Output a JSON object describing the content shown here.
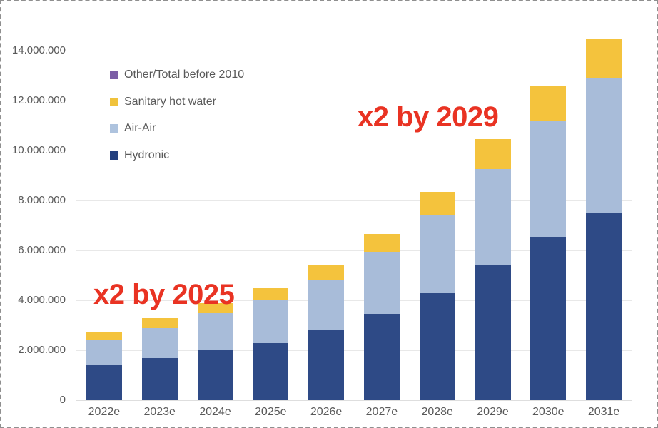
{
  "figure": {
    "background": "#ffffff",
    "border_color": "#8f8f8f",
    "text_color": "#595959",
    "gridline_color": "#e8e8e8"
  },
  "chart_data": {
    "type": "bar",
    "stacked": true,
    "title": "",
    "xlabel": "",
    "ylabel": "",
    "grid": true,
    "legend_position": "top-left-inside",
    "categories": [
      "2022e",
      "2023e",
      "2024e",
      "2025e",
      "2026e",
      "2027e",
      "2028e",
      "2029e",
      "2030e",
      "2031e"
    ],
    "series": [
      {
        "name": "Hydronic",
        "color": "#2e4a86",
        "values": [
          1400000,
          1700000,
          2000000,
          2300000,
          2800000,
          3450000,
          4300000,
          5400000,
          6550000,
          7500000
        ]
      },
      {
        "name": "Air-Air",
        "color": "#a8bcd9",
        "values": [
          1000000,
          1200000,
          1500000,
          1700000,
          2000000,
          2500000,
          3100000,
          3850000,
          4650000,
          5400000
        ]
      },
      {
        "name": "Sanitary hot water",
        "color": "#f4c33d",
        "values": [
          350000,
          400000,
          400000,
          500000,
          600000,
          700000,
          950000,
          1200000,
          1400000,
          1600000
        ]
      },
      {
        "name": "Other/Total before 2010",
        "color": "#7c5ea6",
        "values": [
          0,
          0,
          0,
          0,
          0,
          0,
          0,
          0,
          0,
          0
        ]
      }
    ],
    "stacked_totals": [
      2750000,
      3300000,
      3900000,
      4500000,
      5400000,
      6650000,
      8350000,
      10450000,
      12600000,
      14500000
    ],
    "y_axis": {
      "min": 0,
      "max": 14000000,
      "tick_step": 2000000,
      "ticks": [
        {
          "value": 0,
          "label": "0"
        },
        {
          "value": 2000000,
          "label": "2.000.000"
        },
        {
          "value": 4000000,
          "label": "4.000.000"
        },
        {
          "value": 6000000,
          "label": "6.000.000"
        },
        {
          "value": 8000000,
          "label": "8.000.000"
        },
        {
          "value": 10000000,
          "label": "10.000.000"
        },
        {
          "value": 12000000,
          "label": "12.000.000"
        },
        {
          "value": 14000000,
          "label": "14.000.000"
        }
      ]
    },
    "legend": {
      "entries": [
        {
          "label": "Other/Total before 2010",
          "color": "#7c5ea6"
        },
        {
          "label": "Sanitary hot water",
          "color": "#f0c23c"
        },
        {
          "label": "Air-Air",
          "color": "#aec3de"
        },
        {
          "label": "Hydronic",
          "color": "#24407f"
        }
      ]
    },
    "annotations": [
      {
        "text": "x2 by 2025",
        "color": "#e93323"
      },
      {
        "text": "x2 by 2029",
        "color": "#e93323"
      }
    ]
  }
}
